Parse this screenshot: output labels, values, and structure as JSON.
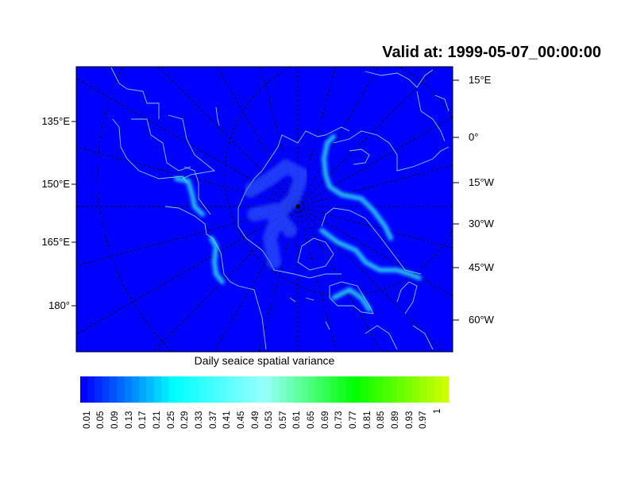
{
  "title": "Valid at: 1999-05-07_00:00:00",
  "left_labels": [
    "135°E",
    "150°E",
    "165°E",
    "180°"
  ],
  "right_labels": [
    "15°E",
    "0°",
    "15°W",
    "30°W",
    "45°W",
    "60°W"
  ],
  "colorbar": {
    "title": "Daily seaice spatial variance",
    "labels": [
      "0.01",
      "0.05",
      "0.09",
      "0.13",
      "0.17",
      "0.21",
      "0.25",
      "0.29",
      "0.33",
      "0.37",
      "0.41",
      "0.45",
      "0.49",
      "0.53",
      "0.57",
      "0.61",
      "0.65",
      "0.69",
      "0.73",
      "0.77",
      "0.81",
      "0.85",
      "0.89",
      "0.93",
      "0.97",
      "1"
    ],
    "stops": [
      "#0000ff",
      "#00ffff",
      "#99ffff",
      "#00ff00",
      "#ccff00"
    ]
  },
  "colors": {
    "background": "#0000ff",
    "coastline": "#7fd0e8",
    "ice": "#30f0ff"
  }
}
